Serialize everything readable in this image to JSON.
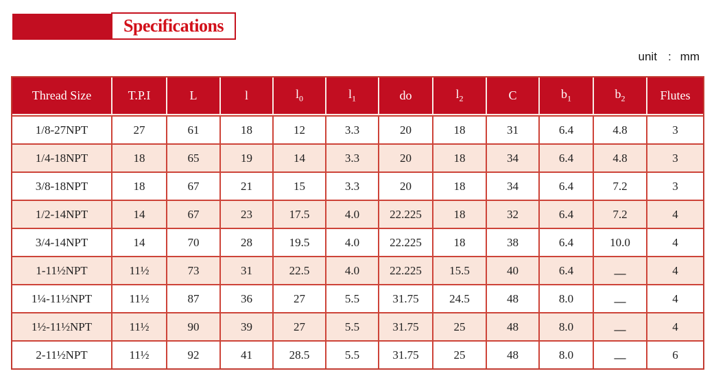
{
  "page": {
    "title": "Specifications",
    "unit_label": "unit",
    "unit_separator": ":",
    "unit_value": "mm"
  },
  "colors": {
    "header_bg": "#c20e21",
    "alt_row_bg": "#fae5db",
    "grid_border": "#cd4338",
    "title_text": "#d2101a",
    "header_text": "#ffffff",
    "cell_text": "#1e1e1e"
  },
  "table": {
    "columns": [
      {
        "base": "Thread Size",
        "sub": ""
      },
      {
        "base": "T.P.I",
        "sub": ""
      },
      {
        "base": "L",
        "sub": ""
      },
      {
        "base": "l",
        "sub": ""
      },
      {
        "base": "l",
        "sub": "0"
      },
      {
        "base": "l",
        "sub": "1"
      },
      {
        "base": "do",
        "sub": ""
      },
      {
        "base": "l",
        "sub": "2"
      },
      {
        "base": "C",
        "sub": ""
      },
      {
        "base": "b",
        "sub": "1"
      },
      {
        "base": "b",
        "sub": "2"
      },
      {
        "base": "Flutes",
        "sub": ""
      }
    ],
    "rows": [
      [
        "1/8-27NPT",
        "27",
        "61",
        "18",
        "12",
        "3.3",
        "20",
        "18",
        "31",
        "6.4",
        "4.8",
        "3"
      ],
      [
        "1/4-18NPT",
        "18",
        "65",
        "19",
        "14",
        "3.3",
        "20",
        "18",
        "34",
        "6.4",
        "4.8",
        "3"
      ],
      [
        "3/8-18NPT",
        "18",
        "67",
        "21",
        "15",
        "3.3",
        "20",
        "18",
        "34",
        "6.4",
        "7.2",
        "3"
      ],
      [
        "1/2-14NPT",
        "14",
        "67",
        "23",
        "17.5",
        "4.0",
        "22.225",
        "18",
        "32",
        "6.4",
        "7.2",
        "4"
      ],
      [
        "3/4-14NPT",
        "14",
        "70",
        "28",
        "19.5",
        "4.0",
        "22.225",
        "18",
        "38",
        "6.4",
        "10.0",
        "4"
      ],
      [
        "1-11½NPT",
        "11½",
        "73",
        "31",
        "22.5",
        "4.0",
        "22.225",
        "15.5",
        "40",
        "6.4",
        "—",
        "4"
      ],
      [
        "1¼-11½NPT",
        "11½",
        "87",
        "36",
        "27",
        "5.5",
        "31.75",
        "24.5",
        "48",
        "8.0",
        "—",
        "4"
      ],
      [
        "1½-11½NPT",
        "11½",
        "90",
        "39",
        "27",
        "5.5",
        "31.75",
        "25",
        "48",
        "8.0",
        "—",
        "4"
      ],
      [
        "2-11½NPT",
        "11½",
        "92",
        "41",
        "28.5",
        "5.5",
        "31.75",
        "25",
        "48",
        "8.0",
        "—",
        "6"
      ]
    ]
  }
}
